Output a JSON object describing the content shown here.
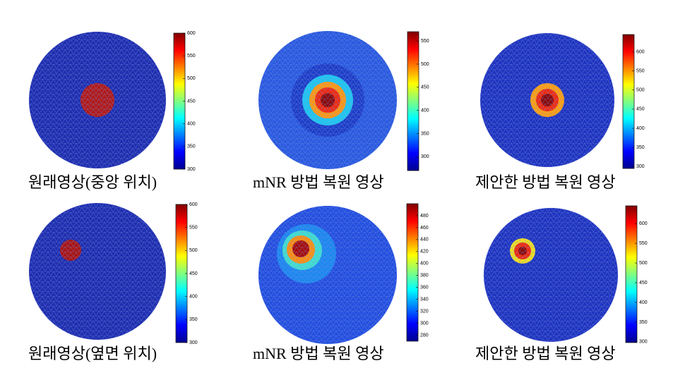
{
  "panels": [
    {
      "caption": "원래영상(중앙 위치)",
      "colorbar": {
        "lim": [
          300,
          600
        ],
        "ticks": [
          300,
          350,
          400,
          450,
          500,
          550,
          600
        ]
      }
    },
    {
      "caption": "mNR 방법 복원 영상",
      "colorbar": {
        "lim": [
          270,
          570
        ],
        "ticks": [
          300,
          350,
          400,
          450,
          500,
          550
        ]
      }
    },
    {
      "caption": "제안한 방법 복원 영상",
      "colorbar": {
        "lim": [
          295,
          645
        ],
        "ticks": [
          300,
          350,
          400,
          450,
          500,
          550,
          600
        ]
      }
    },
    {
      "caption": "원래영상(옆면 위치)",
      "colorbar": {
        "lim": [
          300,
          600
        ],
        "ticks": [
          300,
          350,
          400,
          450,
          500,
          550,
          600
        ]
      }
    },
    {
      "caption": "mNR 방법 복원 영상",
      "colorbar": {
        "lim": [
          270,
          500
        ],
        "ticks": [
          280,
          300,
          320,
          340,
          360,
          380,
          400,
          420,
          440,
          460,
          480
        ]
      }
    },
    {
      "caption": "제안한 방법 복원 영상",
      "colorbar": {
        "lim": [
          298,
          645
        ],
        "ticks": [
          300,
          350,
          400,
          450,
          500,
          550,
          600
        ]
      }
    }
  ]
}
